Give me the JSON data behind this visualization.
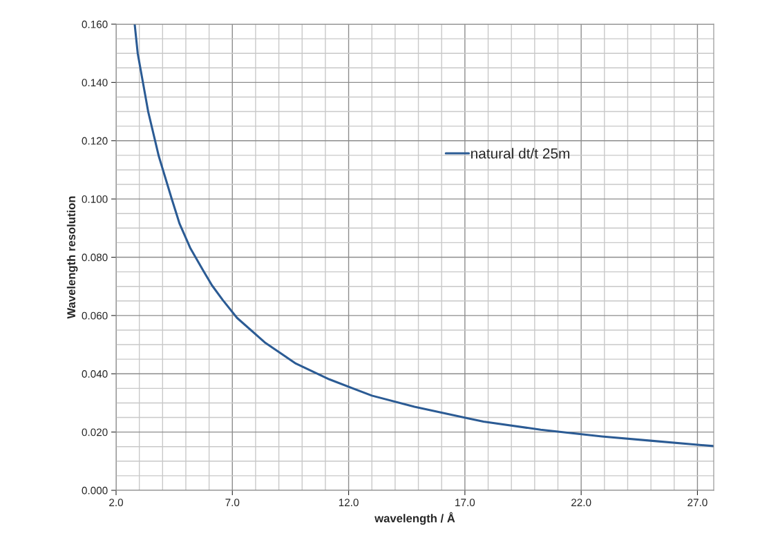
{
  "chart_data": {
    "type": "line",
    "xlabel": "wavelength / Å",
    "ylabel": "Wavelength resolution",
    "x": [
      2.8,
      2.93,
      3.38,
      3.84,
      4.38,
      4.73,
      5.2,
      5.72,
      6.12,
      6.58,
      7.2,
      8.39,
      9.73,
      11.17,
      13.0,
      14.83,
      17.2,
      17.8,
      20.26,
      22.89,
      24.9,
      27.67
    ],
    "series": [
      {
        "name": "natural dt/t 25m",
        "color": "#2b5b94",
        "values": [
          0.16,
          0.15,
          0.13,
          0.1146,
          0.1004,
          0.0915,
          0.083,
          0.0758,
          0.0704,
          0.0654,
          0.0592,
          0.0508,
          0.0435,
          0.0381,
          0.0325,
          0.0287,
          0.0246,
          0.0236,
          0.0208,
          0.0185,
          0.0171,
          0.0152
        ]
      }
    ],
    "xlim": [
      2.0,
      27.7
    ],
    "xticks": [
      {
        "value": 2,
        "label": "2.0"
      },
      {
        "value": 7,
        "label": "7.0"
      },
      {
        "value": 12,
        "label": "12.0"
      },
      {
        "value": 17,
        "label": "17.0"
      },
      {
        "value": 22,
        "label": "22.0"
      },
      {
        "value": 27,
        "label": "27.0"
      }
    ],
    "ylim": [
      0,
      0.16
    ],
    "yticks": [
      {
        "value": 0,
        "label": "0.000"
      },
      {
        "value": 0.02,
        "label": "0.020"
      },
      {
        "value": 0.04,
        "label": "0.040"
      },
      {
        "value": 0.06,
        "label": "0.060"
      },
      {
        "value": 0.08,
        "label": "0.080"
      },
      {
        "value": 0.1,
        "label": "0.100"
      },
      {
        "value": 0.12,
        "label": "0.120"
      },
      {
        "value": 0.14,
        "label": "0.140"
      },
      {
        "value": 0.16,
        "label": "0.160"
      }
    ],
    "grid": true,
    "legend": "center right",
    "marker": "none",
    "line_style": "solid"
  }
}
